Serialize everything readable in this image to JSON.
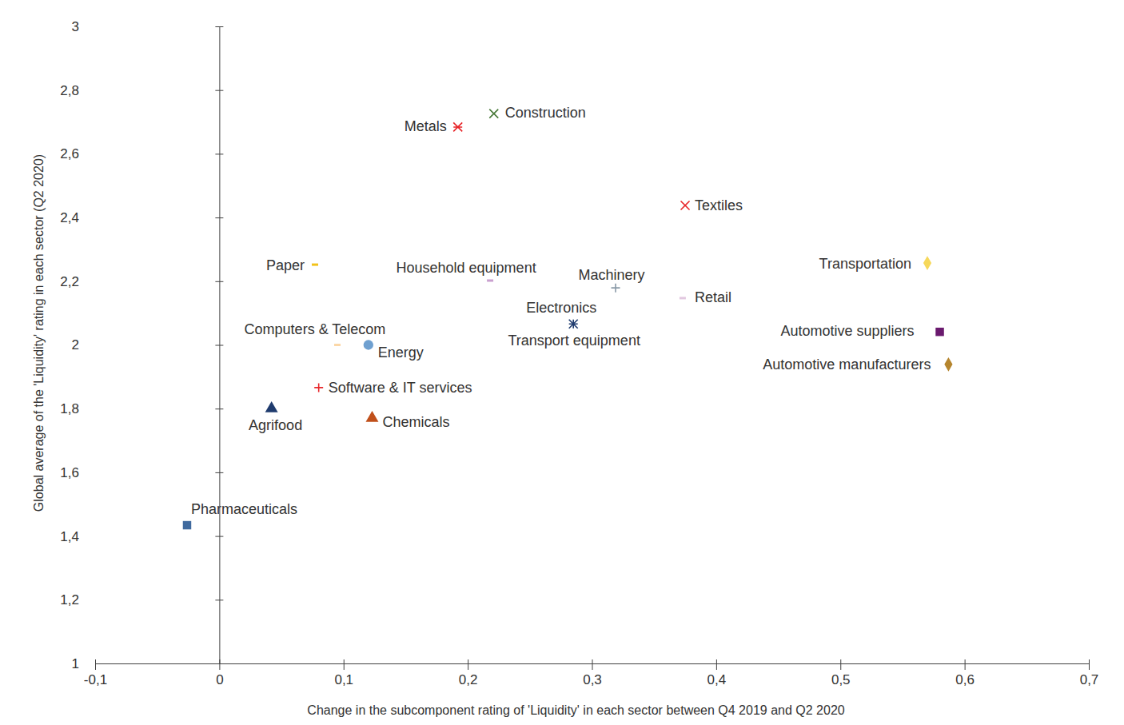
{
  "chart_data": {
    "type": "scatter",
    "xlabel": "Change in the subcomponent rating of 'Liquidity' in each sector between Q4 2019 and Q2 2020",
    "ylabel": "Global average of the 'Liquidity' rating in each sector (Q2 2020)",
    "xlim": [
      -0.1,
      0.7
    ],
    "xticks": [
      {
        "value": -0.1,
        "label": "-0,1"
      },
      0,
      {
        "value": 0.1,
        "label": "0,1"
      },
      {
        "value": 0.2,
        "label": "0,2"
      },
      {
        "value": 0.3,
        "label": "0,3"
      },
      {
        "value": 0.4,
        "label": "0,4"
      },
      {
        "value": 0.5,
        "label": "0,5"
      },
      {
        "value": 0.6,
        "label": "0,6"
      },
      {
        "value": 0.7,
        "label": "0,7"
      }
    ],
    "ylim": [
      1,
      3
    ],
    "yticks": [
      1,
      {
        "value": 1.2,
        "label": "1,2"
      },
      {
        "value": 1.4,
        "label": "1,4"
      },
      {
        "value": 1.6,
        "label": "1,6"
      },
      {
        "value": 1.8,
        "label": "1,8"
      },
      2,
      {
        "value": 2.2,
        "label": "2,2"
      },
      {
        "value": 2.4,
        "label": "2,4"
      },
      {
        "value": 2.6,
        "label": "2,6"
      },
      {
        "value": 2.8,
        "label": "2,8"
      },
      3
    ],
    "grid": false,
    "series": [
      {
        "name": "Pharmaceuticals",
        "color": "#3f6a9e",
        "marker": "square",
        "x": [
          -0.026
        ],
        "values": [
          1.434
        ]
      },
      {
        "name": "Agrifood",
        "color": "#1f3b6e",
        "marker": "triangle",
        "x": [
          0.042
        ],
        "values": [
          1.8
        ]
      },
      {
        "name": "Chemicals",
        "color": "#c0501b",
        "marker": "triangle",
        "x": [
          0.123
        ],
        "values": [
          1.77
        ]
      },
      {
        "name": "Software & IT services",
        "color": "#e8262a",
        "marker": "plus",
        "x": [
          0.08
        ],
        "values": [
          1.866
        ]
      },
      {
        "name": "Energy",
        "color": "#6fa0d0",
        "marker": "circle",
        "x": [
          0.12
        ],
        "values": [
          2.0
        ]
      },
      {
        "name": "Computers & Telecom",
        "color": "#fbd7a7",
        "marker": "dash",
        "x": [
          0.095
        ],
        "values": [
          2.0
        ]
      },
      {
        "name": "Paper",
        "color": "#f2c21a",
        "marker": "dash",
        "x": [
          0.077
        ],
        "values": [
          2.252
        ]
      },
      {
        "name": "Household equipment",
        "color": "#c9a0cf",
        "marker": "dash",
        "x": [
          0.218
        ],
        "values": [
          2.202
        ]
      },
      {
        "name": "Metals",
        "color": "#e8262a",
        "marker": "asterisk",
        "x": [
          0.192
        ],
        "values": [
          2.684
        ]
      },
      {
        "name": "Construction",
        "color": "#4a7a3a",
        "marker": "x",
        "x": [
          0.221
        ],
        "values": [
          2.726
        ]
      },
      {
        "name": "Textiles",
        "color": "#e8262a",
        "marker": "x",
        "x": [
          0.375
        ],
        "values": [
          2.438
        ]
      },
      {
        "name": "Electronics",
        "color": "#1f3b6e",
        "marker": "x",
        "x": [
          0.285
        ],
        "values": [
          2.066
        ]
      },
      {
        "name": "Transport equipment",
        "color": "#1f3b6e",
        "marker": "plus",
        "x": [
          0.285
        ],
        "values": [
          2.066
        ]
      },
      {
        "name": "Machinery",
        "color": "#8a9aa8",
        "marker": "plus",
        "x": [
          0.319
        ],
        "values": [
          2.179
        ]
      },
      {
        "name": "Retail",
        "color": "#e2c8e0",
        "marker": "dash",
        "x": [
          0.373
        ],
        "values": [
          2.147
        ]
      },
      {
        "name": "Transportation",
        "color": "#f6d85a",
        "marker": "diamond",
        "x": [
          0.57
        ],
        "values": [
          2.257
        ]
      },
      {
        "name": "Automotive suppliers",
        "color": "#6a1a6e",
        "marker": "square",
        "x": [
          0.58
        ],
        "values": [
          2.041
        ]
      },
      {
        "name": "Automotive manufacturers",
        "color": "#b5852e",
        "marker": "diamond",
        "x": [
          0.587
        ],
        "values": [
          1.939
        ]
      }
    ]
  }
}
